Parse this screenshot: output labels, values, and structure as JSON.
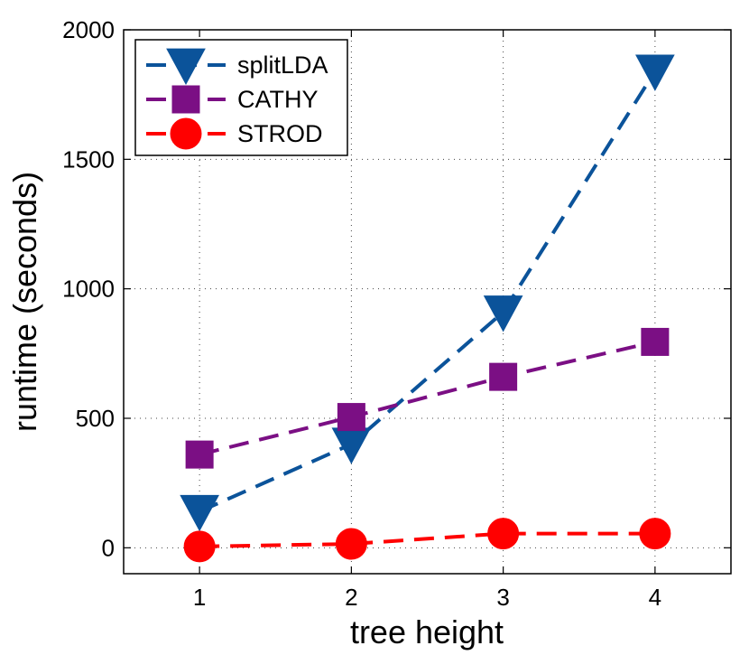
{
  "chart_data": {
    "type": "line",
    "x": [
      1,
      2,
      3,
      4
    ],
    "xlabel": "tree height",
    "ylabel": "runtime (seconds)",
    "xlim": [
      0.5,
      4.5
    ],
    "ylim": [
      -100,
      2000
    ],
    "xticks": [
      1,
      2,
      3,
      4
    ],
    "yticks": [
      0,
      500,
      1000,
      1500,
      2000
    ],
    "grid": true,
    "legend_position": "top-left",
    "series": [
      {
        "name": "splitLDA",
        "values": [
          140,
          400,
          910,
          1840
        ],
        "color": "#0b539a",
        "marker": "triangle-down",
        "line": "dashed"
      },
      {
        "name": "CATHY",
        "values": [
          360,
          505,
          660,
          795
        ],
        "color": "#7b0f84",
        "marker": "square",
        "line": "dashed"
      },
      {
        "name": "STROD",
        "values": [
          5,
          15,
          55,
          55
        ],
        "color": "#ff0000",
        "marker": "circle",
        "line": "dashed"
      }
    ]
  }
}
